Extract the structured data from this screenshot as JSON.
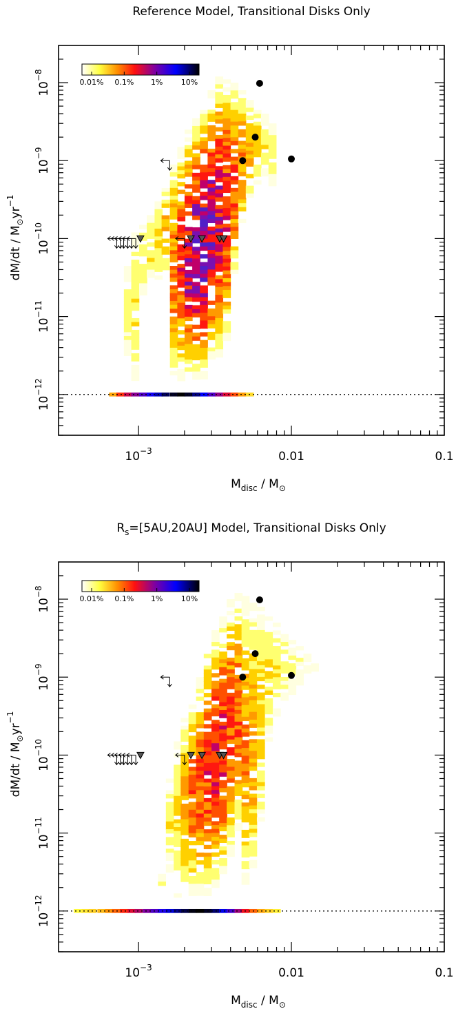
{
  "chart_data": [
    {
      "type": "heatmap",
      "title": "Reference Model, Transitional Disks Only",
      "xlabel": {
        "main": "M",
        "sub": "disc",
        "sep": " / M",
        "odot": "⊙"
      },
      "ylabel": {
        "main": "dM/dt / M",
        "odot": "⊙",
        "unit": "yr",
        "exp": "−1"
      },
      "x_scale": "log",
      "y_scale": "log",
      "xlim": [
        0.0003,
        0.1
      ],
      "ylim": [
        3e-13,
        3e-08
      ],
      "x_ticks": [
        {
          "base": "10",
          "exp": "−3",
          "value": 0.001
        },
        {
          "text": "0.01",
          "value": 0.01
        },
        {
          "text": "0.1",
          "value": 0.1
        }
      ],
      "y_ticks": [
        {
          "base": "10",
          "exp": "−12",
          "value": 1e-12
        },
        {
          "base": "10",
          "exp": "−11",
          "value": 1e-11
        },
        {
          "base": "10",
          "exp": "−10",
          "value": 1e-10
        },
        {
          "base": "10",
          "exp": "−9",
          "value": 1e-09
        },
        {
          "base": "10",
          "exp": "−8",
          "value": 1e-08
        }
      ],
      "colorbar": {
        "labels": [
          "0.01%",
          "0.1%",
          "1%",
          "10%"
        ],
        "placement": "top-left"
      },
      "detection_floor": 1e-12,
      "observed_points": [
        [
          0.0062,
          9.8e-09
        ],
        [
          0.0058,
          2e-09
        ],
        [
          0.0048,
          1e-09
        ],
        [
          0.01,
          1.05e-09
        ]
      ],
      "upper_limits": [
        [
          0.0016,
          1e-09
        ]
      ],
      "upper_limits_left": [
        [
          0.00072,
          1e-10
        ],
        [
          0.00076,
          1e-10
        ],
        [
          0.0008,
          1e-10
        ],
        [
          0.00085,
          1e-10
        ],
        [
          0.0009,
          1e-10
        ],
        [
          0.00096,
          1e-10
        ],
        [
          0.002,
          1e-10
        ]
      ],
      "triangle_points": [
        [
          0.00103,
          1e-10
        ],
        [
          0.0022,
          1e-10
        ],
        [
          0.0026,
          1e-10
        ],
        [
          0.0034,
          1e-10
        ],
        [
          0.0036,
          1e-10
        ]
      ],
      "density": {
        "bins_per_decade": 20,
        "columns": [
          {
            "x": 0.00068,
            "row1": 1.2,
            "ranges": []
          },
          {
            "x": 0.00076,
            "row1": 2.2,
            "ranges": []
          },
          {
            "x": 0.00085,
            "row1": 3.0,
            "ranges": [
              [
                5e-11,
                3e-12,
                0.8
              ]
            ]
          },
          {
            "x": 0.00095,
            "row1": 3.6,
            "ranges": [
              [
                1.2e-10,
                1.5e-12,
                1.0
              ]
            ]
          },
          {
            "x": 0.00107,
            "row1": 4.2,
            "ranges": [
              [
                1.5e-10,
                2e-11,
                1.0
              ]
            ]
          },
          {
            "x": 0.0012,
            "row1": 4.8,
            "ranges": [
              [
                2e-10,
                3e-11,
                1.2
              ]
            ]
          },
          {
            "x": 0.00135,
            "row1": 5.4,
            "ranges": [
              [
                3e-10,
                3e-11,
                1.4
              ]
            ]
          },
          {
            "x": 0.0015,
            "row1": 5.9,
            "ranges": [
              [
                5e-10,
                3e-11,
                1.8
              ]
            ]
          },
          {
            "x": 0.0017,
            "row1": 6.2,
            "ranges": [
              [
                1e-09,
                1.5e-12,
                2.6
              ]
            ]
          },
          {
            "x": 0.0019,
            "row1": 6.4,
            "ranges": [
              [
                1.5e-09,
                1.5e-12,
                3.4
              ]
            ]
          },
          {
            "x": 0.00212,
            "row1": 6.2,
            "ranges": [
              [
                2.5e-09,
                1.5e-12,
                4.2
              ]
            ]
          },
          {
            "x": 0.00238,
            "row1": 5.7,
            "ranges": [
              [
                3.5e-09,
                1.5e-12,
                4.6
              ]
            ]
          },
          {
            "x": 0.00267,
            "row1": 5.0,
            "ranges": [
              [
                5e-09,
                1.5e-12,
                4.8
              ]
            ]
          },
          {
            "x": 0.003,
            "row1": 4.2,
            "ranges": [
              [
                8e-09,
                3e-12,
                4.6
              ]
            ]
          },
          {
            "x": 0.00336,
            "row1": 3.5,
            "ranges": [
              [
                1.2e-08,
                3e-12,
                4.2
              ]
            ]
          },
          {
            "x": 0.00377,
            "row1": 2.8,
            "ranges": [
              [
                1.1e-08,
                5e-12,
                3.6
              ]
            ]
          },
          {
            "x": 0.00423,
            "row1": 2.0,
            "ranges": [
              [
                1e-08,
                3e-11,
                3.0
              ]
            ]
          },
          {
            "x": 0.00475,
            "row1": 1.3,
            "ranges": [
              [
                8e-09,
                1.5e-10,
                2.4
              ]
            ]
          },
          {
            "x": 0.00533,
            "row1": 0.7,
            "ranges": [
              [
                6e-09,
                3e-10,
                1.8
              ]
            ]
          },
          {
            "x": 0.00598,
            "row1": 0,
            "ranges": [
              [
                5e-09,
                5e-10,
                1.4
              ]
            ]
          },
          {
            "x": 0.0067,
            "row1": 0,
            "ranges": [
              [
                4e-09,
                6e-10,
                1.0
              ]
            ]
          },
          {
            "x": 0.0075,
            "row1": 0,
            "ranges": [
              [
                3e-09,
                5e-10,
                0.8
              ]
            ]
          }
        ]
      }
    },
    {
      "type": "heatmap",
      "title": {
        "pre": "R",
        "sub": "s",
        "post": "=[5AU,20AU] Model, Transitional Disks Only"
      },
      "xlabel": {
        "main": "M",
        "sub": "disc",
        "sep": " / M",
        "odot": "⊙"
      },
      "ylabel": {
        "main": "dM/dt / M",
        "odot": "⊙",
        "unit": "yr",
        "exp": "−1"
      },
      "x_scale": "log",
      "y_scale": "log",
      "xlim": [
        0.0003,
        0.1
      ],
      "ylim": [
        3e-13,
        3e-08
      ],
      "x_ticks": [
        {
          "base": "10",
          "exp": "−3",
          "value": 0.001
        },
        {
          "text": "0.01",
          "value": 0.01
        },
        {
          "text": "0.1",
          "value": 0.1
        }
      ],
      "y_ticks": [
        {
          "base": "10",
          "exp": "−12",
          "value": 1e-12
        },
        {
          "base": "10",
          "exp": "−11",
          "value": 1e-11
        },
        {
          "base": "10",
          "exp": "−10",
          "value": 1e-10
        },
        {
          "base": "10",
          "exp": "−9",
          "value": 1e-09
        },
        {
          "base": "10",
          "exp": "−8",
          "value": 1e-08
        }
      ],
      "colorbar": {
        "labels": [
          "0.01%",
          "0.1%",
          "1%",
          "10%"
        ],
        "placement": "top-left"
      },
      "detection_floor": 1e-12,
      "observed_points": [
        [
          0.0062,
          9.8e-09
        ],
        [
          0.0058,
          2e-09
        ],
        [
          0.0048,
          1e-09
        ],
        [
          0.01,
          1.05e-09
        ]
      ],
      "upper_limits": [
        [
          0.0016,
          1e-09
        ]
      ],
      "upper_limits_left": [
        [
          0.00072,
          1e-10
        ],
        [
          0.00076,
          1e-10
        ],
        [
          0.0008,
          1e-10
        ],
        [
          0.00085,
          1e-10
        ],
        [
          0.0009,
          1e-10
        ],
        [
          0.00096,
          1e-10
        ],
        [
          0.002,
          1e-10
        ]
      ],
      "triangle_points": [
        [
          0.00103,
          1e-10
        ],
        [
          0.0022,
          1e-10
        ],
        [
          0.0026,
          1e-10
        ],
        [
          0.0034,
          1e-10
        ],
        [
          0.0036,
          1e-10
        ]
      ],
      "density": {
        "bins_per_decade": 20,
        "columns": [
          {
            "x": 0.0004,
            "row1": 0.4,
            "ranges": []
          },
          {
            "x": 0.00045,
            "row1": 0.6,
            "ranges": []
          },
          {
            "x": 0.0005,
            "row1": 0.8,
            "ranges": []
          },
          {
            "x": 0.00057,
            "row1": 1.0,
            "ranges": []
          },
          {
            "x": 0.00064,
            "row1": 1.4,
            "ranges": []
          },
          {
            "x": 0.00071,
            "row1": 1.8,
            "ranges": []
          },
          {
            "x": 0.0008,
            "row1": 2.3,
            "ranges": []
          },
          {
            "x": 0.0009,
            "row1": 2.8,
            "ranges": []
          },
          {
            "x": 0.001,
            "row1": 3.2,
            "ranges": []
          },
          {
            "x": 0.00113,
            "row1": 3.7,
            "ranges": []
          },
          {
            "x": 0.00127,
            "row1": 4.2,
            "ranges": []
          },
          {
            "x": 0.00142,
            "row1": 4.7,
            "ranges": [
              [
                3e-12,
                2e-12,
                0.6
              ]
            ]
          },
          {
            "x": 0.0016,
            "row1": 5.2,
            "ranges": [
              [
                5e-11,
                3e-12,
                1.0
              ]
            ]
          },
          {
            "x": 0.0018,
            "row1": 5.6,
            "ranges": [
              [
                1.5e-10,
                1.5e-12,
                1.4
              ]
            ]
          },
          {
            "x": 0.002,
            "row1": 6.0,
            "ranges": [
              [
                3e-10,
                1.5e-12,
                2.0
              ]
            ]
          },
          {
            "x": 0.00225,
            "row1": 6.3,
            "ranges": [
              [
                5e-10,
                1.5e-12,
                2.6
              ]
            ]
          },
          {
            "x": 0.00252,
            "row1": 6.4,
            "ranges": [
              [
                1e-09,
                1.5e-12,
                3.0
              ]
            ]
          },
          {
            "x": 0.00283,
            "row1": 6.2,
            "ranges": [
              [
                2.5e-09,
                1.5e-12,
                3.4
              ]
            ]
          },
          {
            "x": 0.00318,
            "row1": 5.8,
            "ranges": [
              [
                4e-09,
                2e-12,
                3.6
              ]
            ]
          },
          {
            "x": 0.00357,
            "row1": 5.1,
            "ranges": [
              [
                6e-09,
                3e-12,
                3.6
              ]
            ]
          },
          {
            "x": 0.004,
            "row1": 4.3,
            "ranges": [
              [
                1e-08,
                5e-12,
                3.2
              ]
            ]
          },
          {
            "x": 0.0045,
            "row1": 3.4,
            "ranges": [
              [
                1.2e-08,
                1e-11,
                2.8
              ]
            ]
          },
          {
            "x": 0.005,
            "row1": 2.6,
            "ranges": [
              [
                1.1e-08,
                2e-12,
                2.4
              ]
            ]
          },
          {
            "x": 0.0056,
            "row1": 1.8,
            "ranges": [
              [
                9e-09,
                3e-12,
                2.0
              ]
            ]
          },
          {
            "x": 0.0063,
            "row1": 1.2,
            "ranges": [
              [
                8e-09,
                1e-11,
                1.6
              ]
            ]
          },
          {
            "x": 0.0071,
            "row1": 0.8,
            "ranges": [
              [
                6e-09,
                1.5e-10,
                1.2
              ]
            ]
          },
          {
            "x": 0.008,
            "row1": 0.5,
            "ranges": [
              [
                5e-09,
                3e-10,
                1.0
              ]
            ]
          },
          {
            "x": 0.009,
            "row1": 0,
            "ranges": [
              [
                4e-09,
                5e-10,
                0.8
              ]
            ]
          },
          {
            "x": 0.0101,
            "row1": 0,
            "ranges": [
              [
                3e-09,
                6e-10,
                0.6
              ]
            ]
          },
          {
            "x": 0.0113,
            "row1": 0,
            "ranges": [
              [
                2.5e-09,
                8e-10,
                0.5
              ]
            ]
          },
          {
            "x": 0.0127,
            "row1": 0,
            "ranges": [
              [
                2e-09,
                1e-09,
                0.4
              ]
            ]
          },
          {
            "x": 0.0142,
            "row1": 0,
            "ranges": [
              [
                1.5e-09,
                1.2e-09,
                0.3
              ]
            ]
          }
        ]
      }
    }
  ]
}
